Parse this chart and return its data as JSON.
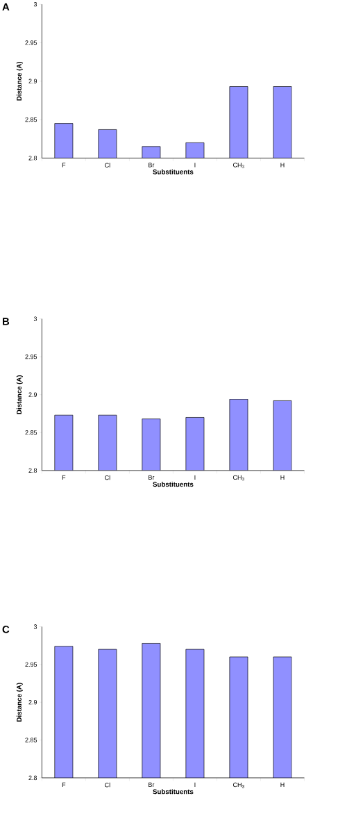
{
  "chart_data": [
    {
      "type": "bar",
      "title": "A",
      "xlabel": "Substituents",
      "ylabel": "Distance (A)",
      "categories": [
        "F",
        "Cl",
        "Br",
        "I",
        "CH$_{3}$",
        "H"
      ],
      "values": [
        2.845,
        2.837,
        2.815,
        2.82,
        2.893,
        2.893
      ],
      "color": "#9090ff",
      "ylim": [
        2.8,
        3
      ],
      "yticks": [
        2.8,
        2.85,
        2.9,
        2.95,
        3
      ]
    },
    {
      "type": "bar",
      "title": "B",
      "xlabel": "Substituents",
      "ylabel": "Distance (A)",
      "categories": [
        "F",
        "Cl",
        "Br",
        "I",
        "CH$_{3}$",
        "H"
      ],
      "values": [
        2.873,
        2.873,
        2.868,
        2.87,
        2.894,
        2.892
      ],
      "color": "#9090ff",
      "ylim": [
        2.8,
        3
      ],
      "yticks": [
        2.8,
        2.85,
        2.9,
        2.95,
        3
      ]
    },
    {
      "type": "bar",
      "title": "C",
      "xlabel": "Substituents",
      "ylabel": "Distance (A)",
      "categories": [
        "F",
        "Cl",
        "Br",
        "I",
        "CH$_{3}$",
        "H"
      ],
      "values": [
        2.974,
        2.97,
        2.978,
        2.97,
        2.96,
        2.96
      ],
      "color": "#9090ff",
      "ylim": [
        2.8,
        3
      ],
      "yticks": [
        2.8,
        2.85,
        2.9,
        2.95,
        3
      ]
    }
  ]
}
